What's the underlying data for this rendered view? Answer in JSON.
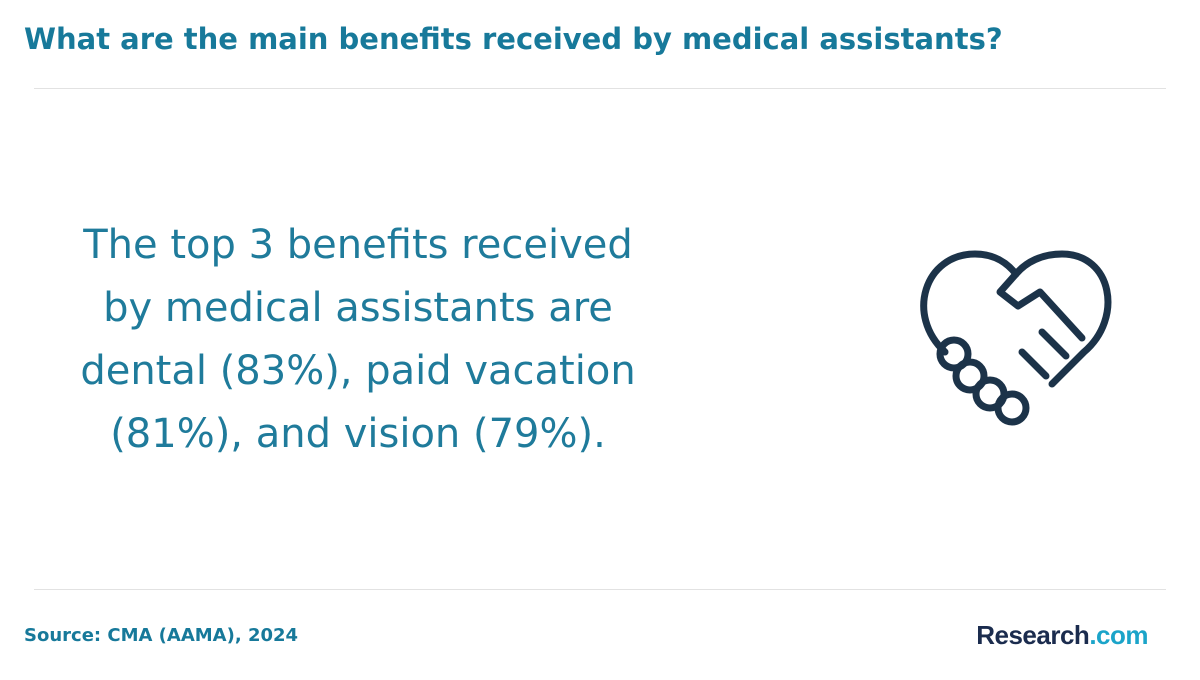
{
  "header": {
    "title": "What are the main benefits received by medical assistants?"
  },
  "statement": {
    "lines": [
      "The top 3 benefits received",
      "by medical assistants are",
      "dental (83%), paid vacation",
      "(81%), and vision (79%)."
    ]
  },
  "footer": {
    "source": "Source: CMA (AAMA), 2024",
    "logo": {
      "name": "Research",
      "suffix": ".com"
    }
  }
}
